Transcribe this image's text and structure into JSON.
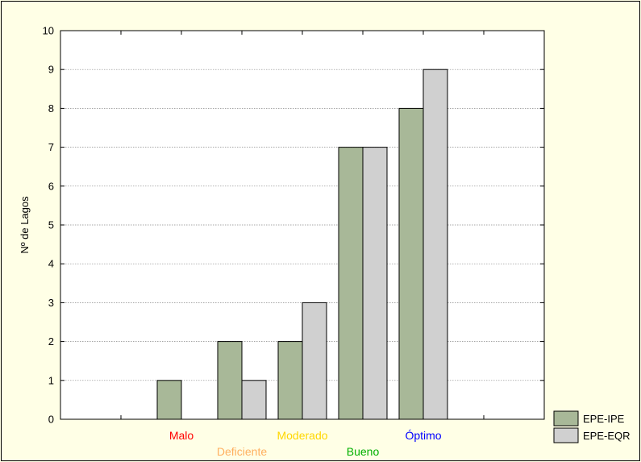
{
  "chart_data": {
    "type": "bar",
    "ylabel": "Nº de Lagos",
    "xlabel": "",
    "ylim": [
      0,
      10
    ],
    "yticks": [
      0,
      1,
      2,
      3,
      4,
      5,
      6,
      7,
      8,
      9,
      10
    ],
    "grid": "horizontal-dotted",
    "categories": [
      "Malo",
      "Deficiente",
      "Moderado",
      "Bueno",
      "Óptimo"
    ],
    "category_colors": [
      "#ff0000",
      "#ffb060",
      "#ffd700",
      "#00b000",
      "#0000ff"
    ],
    "series": [
      {
        "name": "EPE-IPE",
        "values": [
          1,
          2,
          2,
          7,
          8
        ],
        "color": "#a8b898"
      },
      {
        "name": "EPE-EQR",
        "values": [
          0,
          1,
          3,
          7,
          9
        ],
        "color": "#d0d0d0"
      }
    ],
    "legend_position": "bottom-right"
  }
}
